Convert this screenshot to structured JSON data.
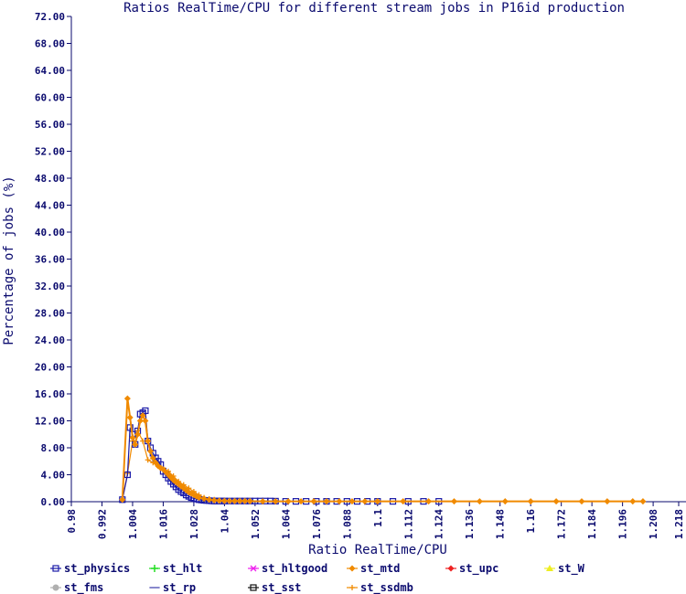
{
  "chart_data": {
    "type": "line",
    "title": "Ratios RealTime/CPU for different stream jobs in P16id production",
    "xlabel": "Ratio RealTime/CPU",
    "ylabel": "Percentage of jobs (%)",
    "xlim": [
      0.98,
      1.218
    ],
    "ylim": [
      0,
      72
    ],
    "x_ticks": [
      "0.98",
      "0.992",
      "1.004",
      "1.016",
      "1.028",
      "1.04",
      "1.052",
      "1.064",
      "1.076",
      "1.088",
      "1.1",
      "1.112",
      "1.124",
      "1.136",
      "1.148",
      "1.16",
      "1.172",
      "1.184",
      "1.196",
      "1.208",
      "1.218"
    ],
    "y_ticks": [
      "0.00",
      "4.00",
      "8.00",
      "12.00",
      "16.00",
      "20.00",
      "24.00",
      "28.00",
      "32.00",
      "36.00",
      "40.00",
      "44.00",
      "48.00",
      "52.00",
      "56.00",
      "60.00",
      "64.00",
      "68.00",
      "72.00"
    ],
    "grid": false,
    "legend_position": "bottom",
    "colors": {
      "axis": "#0a0a6e",
      "st_physics": "#1a1aa8",
      "st_hlt": "#22dd22",
      "st_hltgood": "#ee22ee",
      "st_mtd": "#f08a00",
      "st_upc": "#ee2222",
      "st_W": "#eeee22",
      "st_fms": "#b0b0b0",
      "st_rp": "#8888cc",
      "st_sst": "#111111",
      "st_ssdmb": "#f08a00"
    },
    "series": [
      {
        "name": "st_physics",
        "marker": "square-icon",
        "x": [
          1.0,
          1.002,
          1.003,
          1.004,
          1.005,
          1.006,
          1.007,
          1.008,
          1.009,
          1.01,
          1.011,
          1.012,
          1.013,
          1.014,
          1.015,
          1.016,
          1.017,
          1.018,
          1.019,
          1.02,
          1.021,
          1.022,
          1.023,
          1.024,
          1.025,
          1.026,
          1.027,
          1.028,
          1.029,
          1.03,
          1.031,
          1.032,
          1.033,
          1.034,
          1.035,
          1.036,
          1.037,
          1.038,
          1.039,
          1.04,
          1.042,
          1.044,
          1.046,
          1.048,
          1.05,
          1.052,
          1.054,
          1.056,
          1.058,
          1.06,
          1.064,
          1.068,
          1.072,
          1.076,
          1.08,
          1.084,
          1.088,
          1.092,
          1.096,
          1.1,
          1.106,
          1.112,
          1.118,
          1.124
        ],
        "y": [
          0.3,
          4.0,
          11.0,
          10.0,
          8.5,
          10.5,
          13.0,
          13.2,
          13.5,
          9.0,
          8.0,
          7.2,
          6.5,
          6.0,
          5.5,
          4.5,
          4.0,
          3.5,
          3.0,
          2.6,
          2.2,
          1.8,
          1.5,
          1.3,
          1.0,
          0.8,
          0.6,
          0.5,
          0.4,
          0.3,
          0.25,
          0.2,
          0.18,
          0.15,
          0.12,
          0.1,
          0.1,
          0.1,
          0.1,
          0.1,
          0.1,
          0.1,
          0.1,
          0.1,
          0.1,
          0.1,
          0.1,
          0.1,
          0.1,
          0.08,
          0.05,
          0.05,
          0.05,
          0.05,
          0.05,
          0.05,
          0.05,
          0.05,
          0.05,
          0.05,
          0.05,
          0.05,
          0.05,
          0.05
        ]
      },
      {
        "name": "st_hlt",
        "marker": "plus-icon",
        "x": [],
        "y": []
      },
      {
        "name": "st_hltgood",
        "marker": "asterisk-icon",
        "x": [],
        "y": []
      },
      {
        "name": "st_mtd",
        "marker": "diamond-icon",
        "x": [
          1.0,
          1.002,
          1.003,
          1.004,
          1.005,
          1.006,
          1.007,
          1.008,
          1.009,
          1.01,
          1.011,
          1.012,
          1.013,
          1.014,
          1.015,
          1.016,
          1.017,
          1.018,
          1.019,
          1.02,
          1.021,
          1.022,
          1.023,
          1.024,
          1.025,
          1.026,
          1.027,
          1.028,
          1.029,
          1.03,
          1.032,
          1.034,
          1.036,
          1.038,
          1.04,
          1.042,
          1.044,
          1.046,
          1.048,
          1.05,
          1.055,
          1.06,
          1.065,
          1.07,
          1.075,
          1.08,
          1.085,
          1.09,
          1.095,
          1.1,
          1.11,
          1.12,
          1.13,
          1.14,
          1.15,
          1.16,
          1.17,
          1.18,
          1.19,
          1.2,
          1.204
        ],
        "y": [
          0.3,
          15.3,
          12.5,
          9.5,
          8.5,
          10.0,
          12.0,
          12.8,
          12.0,
          9.0,
          7.5,
          6.5,
          5.8,
          5.3,
          5.0,
          4.8,
          4.4,
          4.0,
          3.6,
          3.2,
          2.9,
          2.6,
          2.3,
          2.0,
          1.7,
          1.4,
          1.2,
          1.0,
          0.8,
          0.6,
          0.45,
          0.3,
          0.2,
          0.15,
          0.12,
          0.1,
          0.1,
          0.1,
          0.1,
          0.08,
          0.05,
          0.05,
          0.05,
          0.05,
          0.05,
          0.05,
          0.05,
          0.05,
          0.05,
          0.05,
          0.05,
          0.05,
          0.05,
          0.05,
          0.05,
          0.05,
          0.05,
          0.05,
          0.05,
          0.05,
          0.05
        ]
      },
      {
        "name": "st_upc",
        "marker": "diamond-icon",
        "x": [],
        "y": []
      },
      {
        "name": "st_W",
        "marker": "triangle-icon",
        "x": [],
        "y": []
      },
      {
        "name": "st_fms",
        "marker": "circle-icon",
        "x": [],
        "y": []
      },
      {
        "name": "st_rp",
        "marker": "dash-icon",
        "x": [],
        "y": []
      },
      {
        "name": "st_sst",
        "marker": "square-icon",
        "x": [],
        "y": []
      },
      {
        "name": "st_ssdmb",
        "marker": "cross-icon",
        "x": [
          1.0,
          1.002,
          1.004,
          1.006,
          1.008,
          1.01,
          1.012,
          1.014,
          1.016,
          1.018,
          1.02,
          1.022,
          1.024,
          1.026,
          1.028,
          1.03,
          1.032,
          1.034,
          1.036,
          1.04,
          1.045,
          1.05,
          1.06,
          1.08,
          1.1,
          1.15,
          1.2,
          1.204
        ],
        "y": [
          0.3,
          4.2,
          9.0,
          10.5,
          9.0,
          6.2,
          5.8,
          5.5,
          5.0,
          4.5,
          3.8,
          3.0,
          2.5,
          2.0,
          1.5,
          1.0,
          0.6,
          0.4,
          0.3,
          0.2,
          0.1,
          0.1,
          0.05,
          0.05,
          0.05,
          0.05,
          0.05,
          0.05
        ]
      }
    ]
  }
}
